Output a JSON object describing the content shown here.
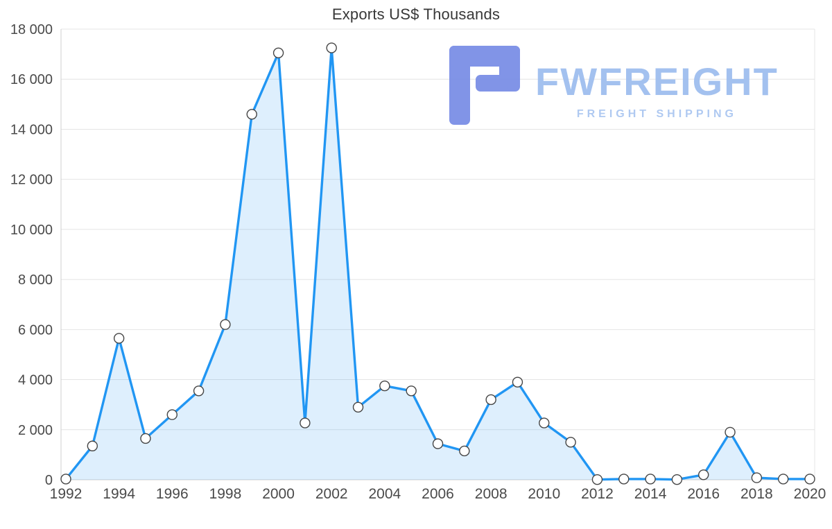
{
  "title": "Exports US$ Thousands",
  "watermark": {
    "brand": "FWFREIGHT",
    "tagline": "FREIGHT SHIPPING"
  },
  "colors": {
    "line": "#2196f3",
    "area": "rgba(33,150,243,0.15)",
    "marker_fill": "#ffffff",
    "marker_stroke": "#454545",
    "grid": "#e4e4e4",
    "axis_line": "#cfcfcf",
    "axis_text": "#4a4a4a",
    "title_text": "#383838",
    "logo_icon": "#7b8fe6",
    "logo_text": "#9fbeef",
    "logo_tagline": "#abc7f1"
  },
  "chart_data": {
    "type": "area",
    "title": "Exports US$ Thousands",
    "x": [
      1992,
      1993,
      1994,
      1995,
      1996,
      1997,
      1998,
      1999,
      2000,
      2001,
      2002,
      2003,
      2004,
      2005,
      2006,
      2007,
      2008,
      2009,
      2010,
      2011,
      2012,
      2013,
      2014,
      2015,
      2016,
      2017,
      2018,
      2019,
      2020
    ],
    "values": [
      30,
      1350,
      5650,
      1650,
      2600,
      3550,
      6200,
      14600,
      17050,
      2270,
      17250,
      2900,
      3750,
      3550,
      1440,
      1150,
      3200,
      3900,
      2270,
      1500,
      10,
      30,
      30,
      10,
      200,
      1900,
      80,
      30,
      30
    ],
    "xlabel": "",
    "ylabel": "",
    "ylim": [
      0,
      18000
    ],
    "ytick_step": 2000,
    "xtick_every": 2,
    "grid": true,
    "legend_position": "none",
    "marker": "circle"
  }
}
